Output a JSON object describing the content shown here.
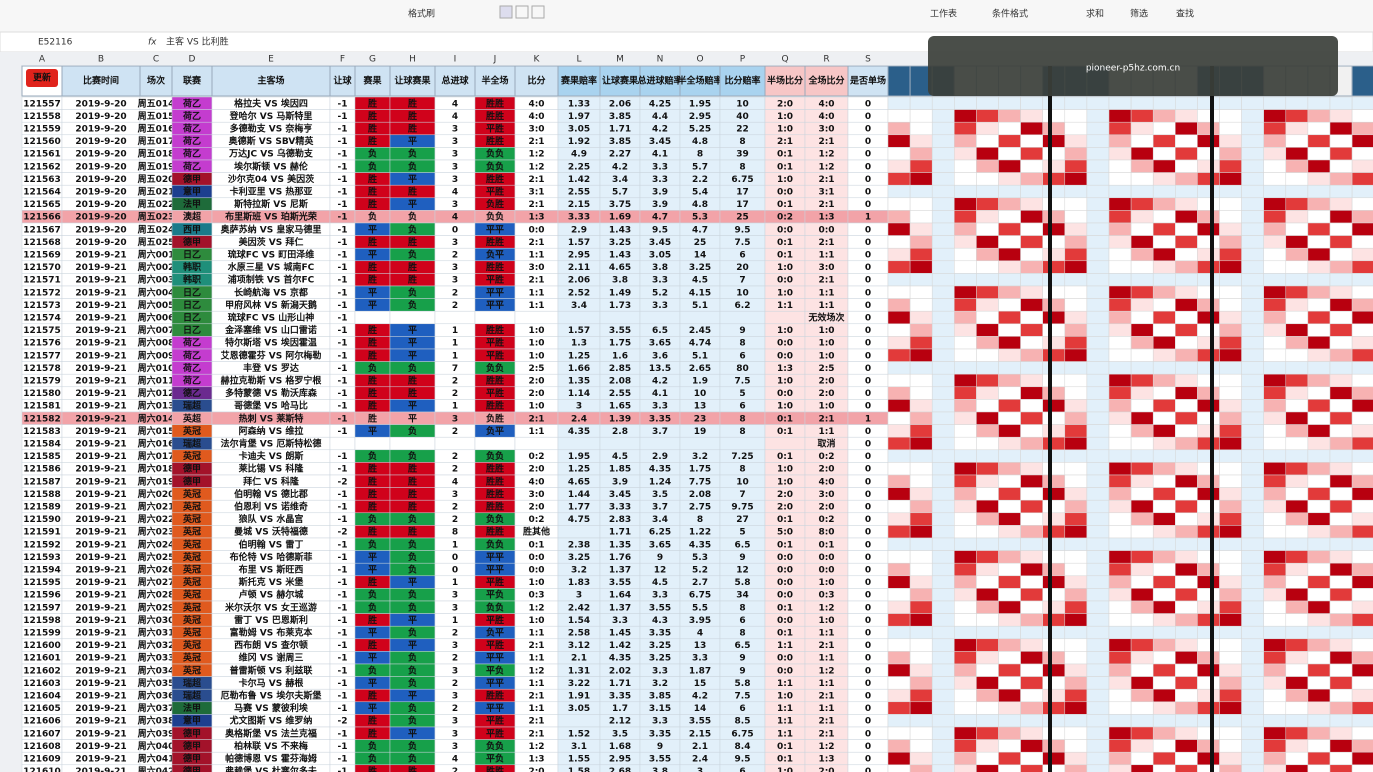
{
  "toolbar": [
    "格式刷",
    "工作表",
    "条件格式",
    "求和",
    "筛选",
    "查找"
  ],
  "formula_bar": {
    "cell": "E52116",
    "formula": "主客 VS 比利胜"
  },
  "watermark": "pioneer-p5hz.com.cn",
  "column_letters": [
    "A",
    "B",
    "C",
    "D",
    "E",
    "F",
    "G",
    "H",
    "I",
    "J",
    "K",
    "L",
    "M",
    "N",
    "O",
    "P",
    "Q",
    "R",
    "S"
  ],
  "header": [
    "更新",
    "比赛时间",
    "场次",
    "联赛",
    "主客场",
    "让球",
    "赛果",
    "让球赛果",
    "总进球",
    "半全场",
    "比分",
    "赛果赔率",
    "让球赛果",
    "总进球赔率",
    "半全场赔率",
    "比分赔率",
    "半场比分",
    "全场比分",
    "是否单场"
  ],
  "league_colors": {
    "荷乙": "#c43ccf",
    "德甲": "#a3122a",
    "意甲": "#1d3f8f",
    "法甲": "#1e6b3a",
    "澳超": "#e8722a",
    "西甲": "#1b7a8a",
    "日乙": "#2e8b3d",
    "韩职": "#1f8f7a",
    "英冠": "#e05a1e",
    "英超": "#e8722a",
    "瑞超": "#2a4d8f",
    "德乙": "#6b2a8f"
  },
  "result_colors": {
    "胜": "#d0021b",
    "平": "#1f5fbf",
    "负": "#17a04a"
  },
  "table": {
    "rows": [
      [
        121557,
        "2019-9-20",
        "周五014",
        "荷乙",
        "格拉夫 VS 埃因四",
        -1,
        "胜",
        "胜",
        4,
        "胜胜",
        "4:0",
        1.33,
        2.06,
        4.25,
        1.95,
        10,
        "2:0",
        "4:0",
        0
      ],
      [
        121558,
        "2019-9-20",
        "周五015",
        "荷乙",
        "登哈尔 VS 马斯特里",
        -1,
        "胜",
        "胜",
        4,
        "胜胜",
        "4:0",
        1.97,
        3.85,
        4.4,
        2.95,
        40,
        "1:0",
        "4:0",
        0
      ],
      [
        121559,
        "2019-9-20",
        "周五016",
        "荷乙",
        "多德勒支 VS 奈梅亨",
        -1,
        "胜",
        "胜",
        3,
        "平胜",
        "3:0",
        3.05,
        1.71,
        4.2,
        5.25,
        22,
        "1:0",
        "3:0",
        0
      ],
      [
        121560,
        "2019-9-20",
        "周五017",
        "荷乙",
        "奥德斯 VS SBV精英",
        -1,
        "胜",
        "平",
        3,
        "胜胜",
        "2:1",
        1.92,
        3.85,
        3.45,
        4.8,
        8,
        "2:1",
        "2:1",
        0
      ],
      [
        121561,
        "2019-9-20",
        "周五018",
        "荷乙",
        "万达JC VS 乌德勒支",
        -1,
        "负",
        "负",
        3,
        "负负",
        "1:2",
        4.9,
        2.27,
        4.1,
        8,
        39,
        "0:1",
        "1:2",
        0
      ],
      [
        121562,
        "2019-9-20",
        "周五019",
        "荷乙",
        "埃尔斯顿 VS 赫伦",
        -1,
        "负",
        "负",
        3,
        "负负",
        "1:2",
        2.25,
        4.2,
        3.3,
        5.7,
        8,
        "0:1",
        "1:2",
        0
      ],
      [
        121563,
        "2019-9-20",
        "周五020",
        "德甲",
        "沙尔克04 VS 美因茨",
        -1,
        "胜",
        "平",
        3,
        "胜胜",
        "2:1",
        1.42,
        3.4,
        3.3,
        2.2,
        6.75,
        "1:0",
        "2:1",
        0
      ],
      [
        121564,
        "2019-9-20",
        "周五021",
        "意甲",
        "卡利亚里 VS 热那亚",
        -1,
        "胜",
        "胜",
        4,
        "平胜",
        "3:1",
        2.55,
        5.7,
        3.9,
        5.4,
        17,
        "0:0",
        "3:1",
        0
      ],
      [
        121565,
        "2019-9-20",
        "周五022",
        "法甲",
        "斯特拉斯 VS 尼斯",
        -1,
        "胜",
        "平",
        3,
        "负胜",
        "2:1",
        2.15,
        3.75,
        3.9,
        4.8,
        17,
        "0:1",
        "2:1",
        0
      ],
      [
        121566,
        "2019-9-20",
        "周五023",
        "澳超",
        "布里斯班 VS 珀斯光荣",
        -1,
        "负",
        "负",
        4,
        "负负",
        "1:3",
        3.33,
        1.69,
        4.7,
        5.3,
        25,
        "0:2",
        "1:3",
        1
      ],
      [
        121567,
        "2019-9-20",
        "周五024",
        "西甲",
        "奥萨苏纳 VS 皇家马德里",
        -1,
        "平",
        "负",
        0,
        "平平",
        "0:0",
        2.9,
        1.43,
        9.5,
        4.7,
        9.5,
        "0:0",
        "0:0",
        0
      ],
      [
        121568,
        "2019-9-20",
        "周五025",
        "德甲",
        "美因茨 VS 拜仁",
        -1,
        "胜",
        "胜",
        3,
        "胜胜",
        "2:1",
        1.57,
        3.25,
        3.45,
        25,
        7.5,
        "0:1",
        "2:1",
        0
      ],
      [
        121569,
        "2019-9-21",
        "周六001",
        "日乙",
        "琉球FC VS 町田泽维",
        -1,
        "平",
        "负",
        2,
        "负平",
        "1:1",
        2.95,
        1.43,
        3.05,
        14,
        6,
        "0:1",
        "1:1",
        0
      ],
      [
        121570,
        "2019-9-21",
        "周六002",
        "韩职",
        "水原三星 VS 城南FC",
        -1,
        "胜",
        "胜",
        3,
        "胜胜",
        "3:0",
        2.11,
        4.65,
        3.8,
        3.25,
        20,
        "1:0",
        "3:0",
        0
      ],
      [
        121571,
        "2019-9-21",
        "周六003",
        "韩职",
        "浦项制铁 VS 首尔FC",
        -1,
        "胜",
        "胜",
        3,
        "平胜",
        "2:1",
        2.06,
        3.8,
        3.3,
        4.5,
        7,
        "0:0",
        "2:1",
        0
      ],
      [
        121572,
        "2019-9-21",
        "周六004",
        "日乙",
        "长崎航海 VS 京都",
        -1,
        "平",
        "负",
        2,
        "平平",
        "1:1",
        2.52,
        1.49,
        5.2,
        4.15,
        10,
        "1:0",
        "1:1",
        0
      ],
      [
        121573,
        "2019-9-21",
        "周六005",
        "日乙",
        "甲府风林 VS 新潟天鹅",
        -1,
        "平",
        "负",
        2,
        "平平",
        "1:1",
        3.4,
        1.73,
        3.3,
        5.1,
        6.2,
        "1:1",
        "1:1",
        0
      ],
      [
        121574,
        "2019-9-21",
        "周六006",
        "日乙",
        "琉球FC VS 山形山神",
        -1,
        null,
        null,
        null,
        null,
        null,
        null,
        null,
        null,
        null,
        null,
        null,
        "无效场次",
        0
      ],
      [
        121575,
        "2019-9-21",
        "周六007",
        "日乙",
        "金泽塞维 VS 山口雷诺",
        -1,
        "胜",
        "平",
        1,
        "胜胜",
        "1:0",
        1.57,
        3.55,
        6.5,
        2.45,
        9,
        "1:0",
        "1:0",
        0
      ],
      [
        121576,
        "2019-9-21",
        "周六008",
        "荷乙",
        "特尔斯塔 VS 埃因霍温",
        -1,
        "胜",
        "平",
        1,
        "平胜",
        "1:0",
        1.3,
        1.75,
        3.65,
        4.74,
        8,
        "0:0",
        "1:0",
        0
      ],
      [
        121577,
        "2019-9-21",
        "周六009",
        "荷乙",
        "艾恩德霍芬 VS 阿尔梅勒",
        -1,
        "胜",
        "平",
        1,
        "平胜",
        "1:0",
        1.25,
        1.6,
        3.6,
        5.1,
        6,
        "0:0",
        "1:0",
        0
      ],
      [
        121578,
        "2019-9-21",
        "周六010",
        "荷乙",
        "丰登 VS 罗达",
        -1,
        "负",
        "负",
        7,
        "负负",
        "2:5",
        1.66,
        2.85,
        13.5,
        2.65,
        80,
        "1:3",
        "2:5",
        0
      ],
      [
        121579,
        "2019-9-21",
        "周六011",
        "荷乙",
        "赫拉克勒斯 VS 格罗宁根",
        -1,
        "胜",
        "胜",
        2,
        "胜胜",
        "2:0",
        1.35,
        2.08,
        4.2,
        1.9,
        7.5,
        "1:0",
        "2:0",
        0
      ],
      [
        121580,
        "2019-9-21",
        "周六012",
        "德乙",
        "多特蒙德 VS 勒沃库森",
        -1,
        "胜",
        "胜",
        2,
        "平胜",
        "2:0",
        1.14,
        2.55,
        4.1,
        10,
        5,
        "0:0",
        "2:0",
        0
      ],
      [
        121581,
        "2019-9-21",
        "周六013",
        "瑞超",
        "哥德堡 VS 哈马比",
        -1,
        "胜",
        "平",
        1,
        "胜胜",
        "1:0",
        3,
        1.65,
        3.3,
        13,
        6,
        "1:0",
        "1:0",
        0
      ],
      [
        121582,
        "2019-9-21",
        "周六014",
        "英超",
        "热刺 VS 莱斯特",
        -1,
        "胜",
        "平",
        3,
        "负胜",
        "2:1",
        2.4,
        1.39,
        3.35,
        23,
        8,
        "0:1",
        "2:1",
        1
      ],
      [
        121583,
        "2019-9-21",
        "周六015",
        "英冠",
        "阿森纳 VS 维拉",
        -1,
        "平",
        "负",
        2,
        "负平",
        "1:1",
        4.35,
        2.8,
        3.7,
        19,
        8,
        "0:1",
        "1:1",
        0
      ],
      [
        121584,
        "2019-9-21",
        "周六016",
        "瑞超",
        "法尔肯堡 VS 厄斯特松德",
        null,
        null,
        null,
        null,
        null,
        null,
        null,
        null,
        null,
        null,
        null,
        null,
        "取消",
        0
      ],
      [
        121585,
        "2019-9-21",
        "周六017",
        "英冠",
        "卡迪夫 VS 朗斯",
        -1,
        "负",
        "负",
        2,
        "负负",
        "0:2",
        1.95,
        4.5,
        2.9,
        3.2,
        7.25,
        "0:1",
        "0:2",
        0
      ],
      [
        121586,
        "2019-9-21",
        "周六018",
        "德甲",
        "莱比锡 VS 科隆",
        -1,
        "胜",
        "胜",
        2,
        "胜胜",
        "2:0",
        1.25,
        1.85,
        4.35,
        1.75,
        8,
        "1:0",
        "2:0",
        0
      ],
      [
        121587,
        "2019-9-21",
        "周六019",
        "德甲",
        "拜仁 VS 科隆",
        -2,
        "胜",
        "胜",
        4,
        "胜胜",
        "4:0",
        4.65,
        3.9,
        1.24,
        7.75,
        10,
        "1:0",
        "4:0",
        0
      ],
      [
        121588,
        "2019-9-21",
        "周六020",
        "英冠",
        "伯明翰 VS 德比郡",
        -1,
        "胜",
        "胜",
        3,
        "胜胜",
        "3:0",
        1.44,
        3.45,
        3.5,
        2.08,
        7,
        "2:0",
        "3:0",
        0
      ],
      [
        121589,
        "2019-9-21",
        "周六021",
        "英冠",
        "伯恩利 VS 诺维奇",
        -1,
        "胜",
        "胜",
        2,
        "胜胜",
        "2:0",
        1.77,
        3.33,
        3.7,
        2.75,
        9.75,
        "2:0",
        "2:0",
        0
      ],
      [
        121590,
        "2019-9-21",
        "周六022",
        "英冠",
        "狼队 VS 水晶宫",
        -1,
        "负",
        "负",
        2,
        "负负",
        "0:2",
        4.75,
        2.83,
        3.4,
        8,
        27,
        "0:1",
        "0:2",
        0
      ],
      [
        121591,
        "2019-9-21",
        "周六023",
        "英冠",
        "曼城 VS 沃特福德",
        -2,
        "胜",
        "胜",
        8,
        "胜胜",
        "胜其他",
        null,
        1.71,
        6.25,
        1.22,
        5,
        "5:0",
        "8:0",
        0
      ],
      [
        121592,
        "2019-9-21",
        "周六024",
        "英冠",
        "伯明翰 VS 雷丁",
        -1,
        "负",
        "负",
        1,
        "负负",
        "0:1",
        2.38,
        1.35,
        3.65,
        4.35,
        6.5,
        "0:1",
        "0:1",
        0
      ],
      [
        121593,
        "2019-9-21",
        "周六025",
        "英冠",
        "布伦特 VS 哈德斯菲",
        -1,
        "平",
        "负",
        0,
        "平平",
        "0:0",
        3.25,
        1.76,
        9,
        5.3,
        9,
        "0:0",
        "0:0",
        0
      ],
      [
        121594,
        "2019-9-21",
        "周六026",
        "英冠",
        "布里 VS 斯旺西",
        -1,
        "平",
        "负",
        0,
        "平平",
        "0:0",
        3.2,
        1.37,
        12,
        5.2,
        12,
        "0:0",
        "0:0",
        0
      ],
      [
        121595,
        "2019-9-21",
        "周六027",
        "英冠",
        "斯托克 VS 米堡",
        -1,
        "胜",
        "平",
        1,
        "平胜",
        "1:0",
        1.83,
        3.55,
        4.5,
        2.7,
        5.8,
        "0:0",
        "1:0",
        0
      ],
      [
        121596,
        "2019-9-21",
        "周六028",
        "英冠",
        "卢顿 VS 赫尔城",
        -1,
        "负",
        "负",
        3,
        "平负",
        "0:3",
        3,
        1.64,
        3.3,
        6.75,
        34,
        "0:0",
        "0:3",
        0
      ],
      [
        121597,
        "2019-9-21",
        "周六029",
        "英冠",
        "米尔沃尔 VS 女王巡游",
        -1,
        "负",
        "负",
        3,
        "负负",
        "1:2",
        2.42,
        1.37,
        3.55,
        5.5,
        8,
        "0:1",
        "1:2",
        0
      ],
      [
        121598,
        "2019-9-21",
        "周六030",
        "英冠",
        "雷丁 VS 巴恩斯利",
        -1,
        "胜",
        "平",
        1,
        "平胜",
        "1:0",
        1.54,
        3.3,
        4.3,
        3.95,
        6,
        "0:0",
        "1:0",
        0
      ],
      [
        121599,
        "2019-9-21",
        "周六031",
        "英冠",
        "富勒姆 VS 布莱克本",
        -1,
        "平",
        "负",
        2,
        "负平",
        "1:1",
        2.58,
        1.45,
        3.35,
        4,
        8,
        "0:1",
        "1:1",
        0
      ],
      [
        121600,
        "2019-9-21",
        "周六032",
        "英冠",
        "西布朗 VS 查尔顿",
        -1,
        "胜",
        "平",
        3,
        "平胜",
        "2:1",
        3.12,
        1.42,
        3.25,
        13,
        6.5,
        "1:1",
        "2:1",
        0
      ],
      [
        121601,
        "2019-9-21",
        "周六033",
        "英冠",
        "维冈 VS 谢周三",
        -1,
        "平",
        "负",
        2,
        "平平",
        "1:1",
        2.1,
        4.35,
        3.25,
        3.3,
        9,
        "0:0",
        "1:1",
        0
      ],
      [
        121602,
        "2019-9-21",
        "周六034",
        "英冠",
        "普雷斯顿 VS 利兹联",
        -1,
        "负",
        "负",
        3,
        "平负",
        "1:2",
        1.31,
        2.02,
        3.3,
        1.87,
        9,
        "0:0",
        "1:2",
        0
      ],
      [
        121603,
        "2019-9-21",
        "周六035",
        "瑞超",
        "卡尔马 VS 赫根",
        -1,
        "平",
        "负",
        2,
        "平平",
        "1:1",
        3.22,
        1.71,
        3.2,
        15,
        5.8,
        "1:1",
        "1:1",
        0
      ],
      [
        121604,
        "2019-9-21",
        "周六036",
        "瑞超",
        "厄勒布鲁 VS 埃尔夫斯堡",
        -1,
        "胜",
        "平",
        3,
        "胜胜",
        "2:1",
        1.91,
        3.35,
        3.85,
        4.2,
        7.5,
        "1:0",
        "2:1",
        0
      ],
      [
        121605,
        "2019-9-21",
        "周六037",
        "法甲",
        "马赛 VS 蒙彼利埃",
        -1,
        "平",
        "负",
        2,
        "平平",
        "1:1",
        3.05,
        1.7,
        3.15,
        14,
        6,
        "1:1",
        "1:1",
        0
      ],
      [
        121606,
        "2019-9-21",
        "周六038",
        "意甲",
        "尤文图斯 VS 维罗纳",
        -2,
        "胜",
        "负",
        3,
        "平胜",
        "2:1",
        null,
        2.12,
        3.3,
        3.55,
        8.5,
        "1:1",
        "2:1",
        0
      ],
      [
        121607,
        "2019-9-21",
        "周六039",
        "德甲",
        "奥格斯堡 VS 法兰克福",
        -1,
        "胜",
        "平",
        3,
        "平胜",
        "2:1",
        1.52,
        3.5,
        3.35,
        2.15,
        6.75,
        "1:1",
        "2:1",
        0
      ],
      [
        121608,
        "2019-9-21",
        "周六040",
        "德甲",
        "柏林联 VS 不来梅",
        -1,
        "负",
        "负",
        3,
        "负负",
        "1:2",
        3.1,
        1.68,
        9,
        2.1,
        8.4,
        "0:1",
        "1:2",
        0
      ],
      [
        121609,
        "2019-9-21",
        "周六041",
        "德甲",
        "帕德博恩 VS 霍芬海姆",
        -1,
        "负",
        "负",
        4,
        "平负",
        "1:3",
        1.55,
        2.95,
        3.55,
        2.4,
        9.5,
        "0:1",
        "1:3",
        0
      ],
      [
        121610,
        "2019-9-21",
        "周六042",
        "德甲",
        "弗赖堡 VS 杜塞尔多夫",
        -1,
        "胜",
        "胜",
        2,
        "胜胜",
        "2:0",
        1.58,
        2.68,
        3.8,
        3,
        6,
        "1:0",
        "2:0",
        0
      ]
    ]
  }
}
